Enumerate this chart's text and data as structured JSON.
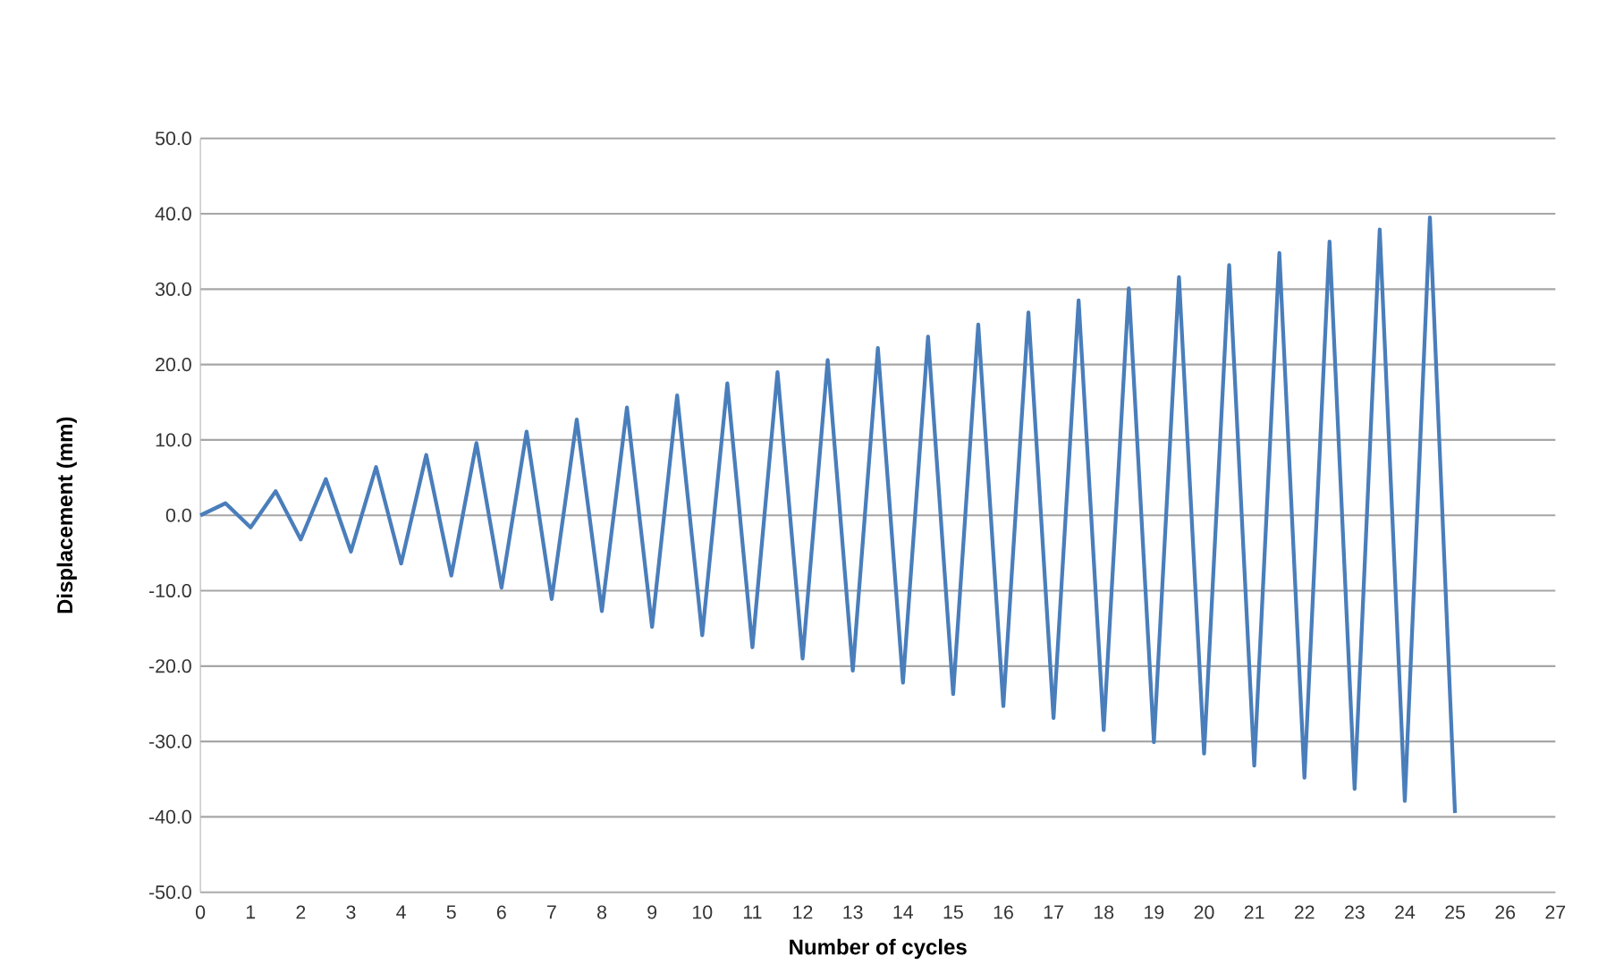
{
  "chart_data": {
    "type": "line",
    "xlabel": "Number of cycles",
    "ylabel": "Displacement (mm)",
    "x": [
      0,
      0.5,
      1,
      1.5,
      2,
      2.5,
      3,
      3.5,
      4,
      4.5,
      5,
      5.5,
      6,
      6.5,
      7,
      7.5,
      8,
      8.5,
      9,
      9.5,
      10,
      10.5,
      11,
      11.5,
      12,
      12.5,
      13,
      13.5,
      14,
      14.5,
      15,
      15.5,
      16,
      16.5,
      17,
      17.5,
      18,
      18.5,
      19,
      19.5,
      20,
      20.5,
      21,
      21.5,
      22,
      22.5,
      23,
      23.5,
      24,
      24.5,
      25
    ],
    "series": [
      {
        "color": "#4a7ebb",
        "values": [
          0,
          1.6,
          -1.6,
          3.2,
          -3.2,
          4.8,
          -4.8,
          6.4,
          -6.4,
          8.0,
          -8.0,
          9.6,
          -9.6,
          11.1,
          -11.1,
          12.7,
          -12.7,
          14.3,
          -14.8,
          15.9,
          -15.9,
          17.5,
          -17.5,
          19.0,
          -19.0,
          20.6,
          -20.6,
          22.2,
          -22.2,
          23.7,
          -23.7,
          25.3,
          -25.3,
          26.9,
          -26.9,
          28.5,
          -28.5,
          30.1,
          -30.1,
          31.6,
          -31.6,
          33.2,
          -33.2,
          34.8,
          -34.8,
          36.3,
          -36.3,
          37.9,
          -37.9,
          39.5,
          -39.5
        ]
      }
    ],
    "xlim": [
      0,
      27
    ],
    "xticks": [
      0,
      1,
      2,
      3,
      4,
      5,
      6,
      7,
      8,
      9,
      10,
      11,
      12,
      13,
      14,
      15,
      16,
      17,
      18,
      19,
      20,
      21,
      22,
      23,
      24,
      25,
      26,
      27
    ],
    "ylim": [
      -50,
      50
    ],
    "yticks": [
      {
        "value": -50,
        "label": "-50.0"
      },
      {
        "value": -40,
        "label": "-40.0"
      },
      {
        "value": -30,
        "label": "-30.0"
      },
      {
        "value": -20,
        "label": "-20.0"
      },
      {
        "value": -10,
        "label": "-10.0"
      },
      {
        "value": 0,
        "label": "0.0"
      },
      {
        "value": 10,
        "label": "10.0"
      },
      {
        "value": 20,
        "label": "20.0"
      },
      {
        "value": 30,
        "label": "30.0"
      },
      {
        "value": 40,
        "label": "40.0"
      },
      {
        "value": 50,
        "label": "50.0"
      }
    ],
    "grid": "y",
    "marker": "none",
    "line_style": "solid"
  }
}
